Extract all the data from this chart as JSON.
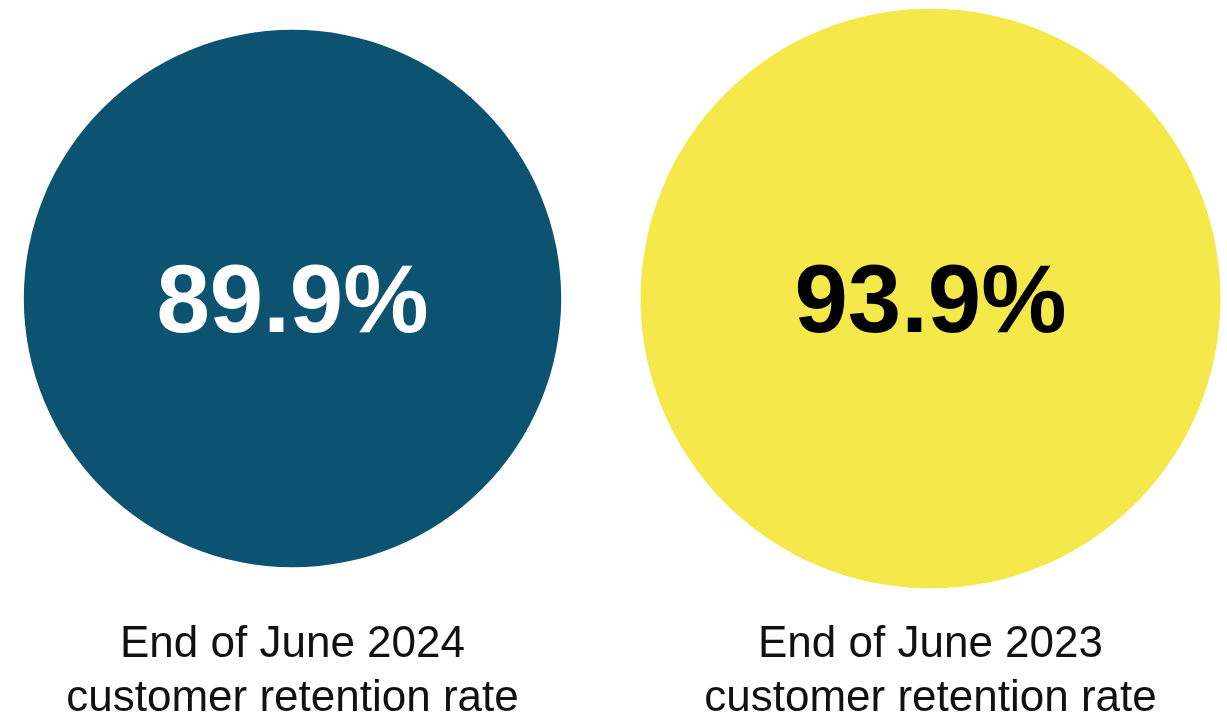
{
  "chart_data": {
    "type": "other",
    "categories": [
      "End of June 2024\ncustomer retention rate",
      "End of June 2023\ncustomer retention rate"
    ],
    "values": [
      89.9,
      93.9
    ],
    "value_labels": [
      "89.9%",
      "93.9%"
    ],
    "colors": [
      "#0b5370",
      "#f5e84a"
    ]
  }
}
